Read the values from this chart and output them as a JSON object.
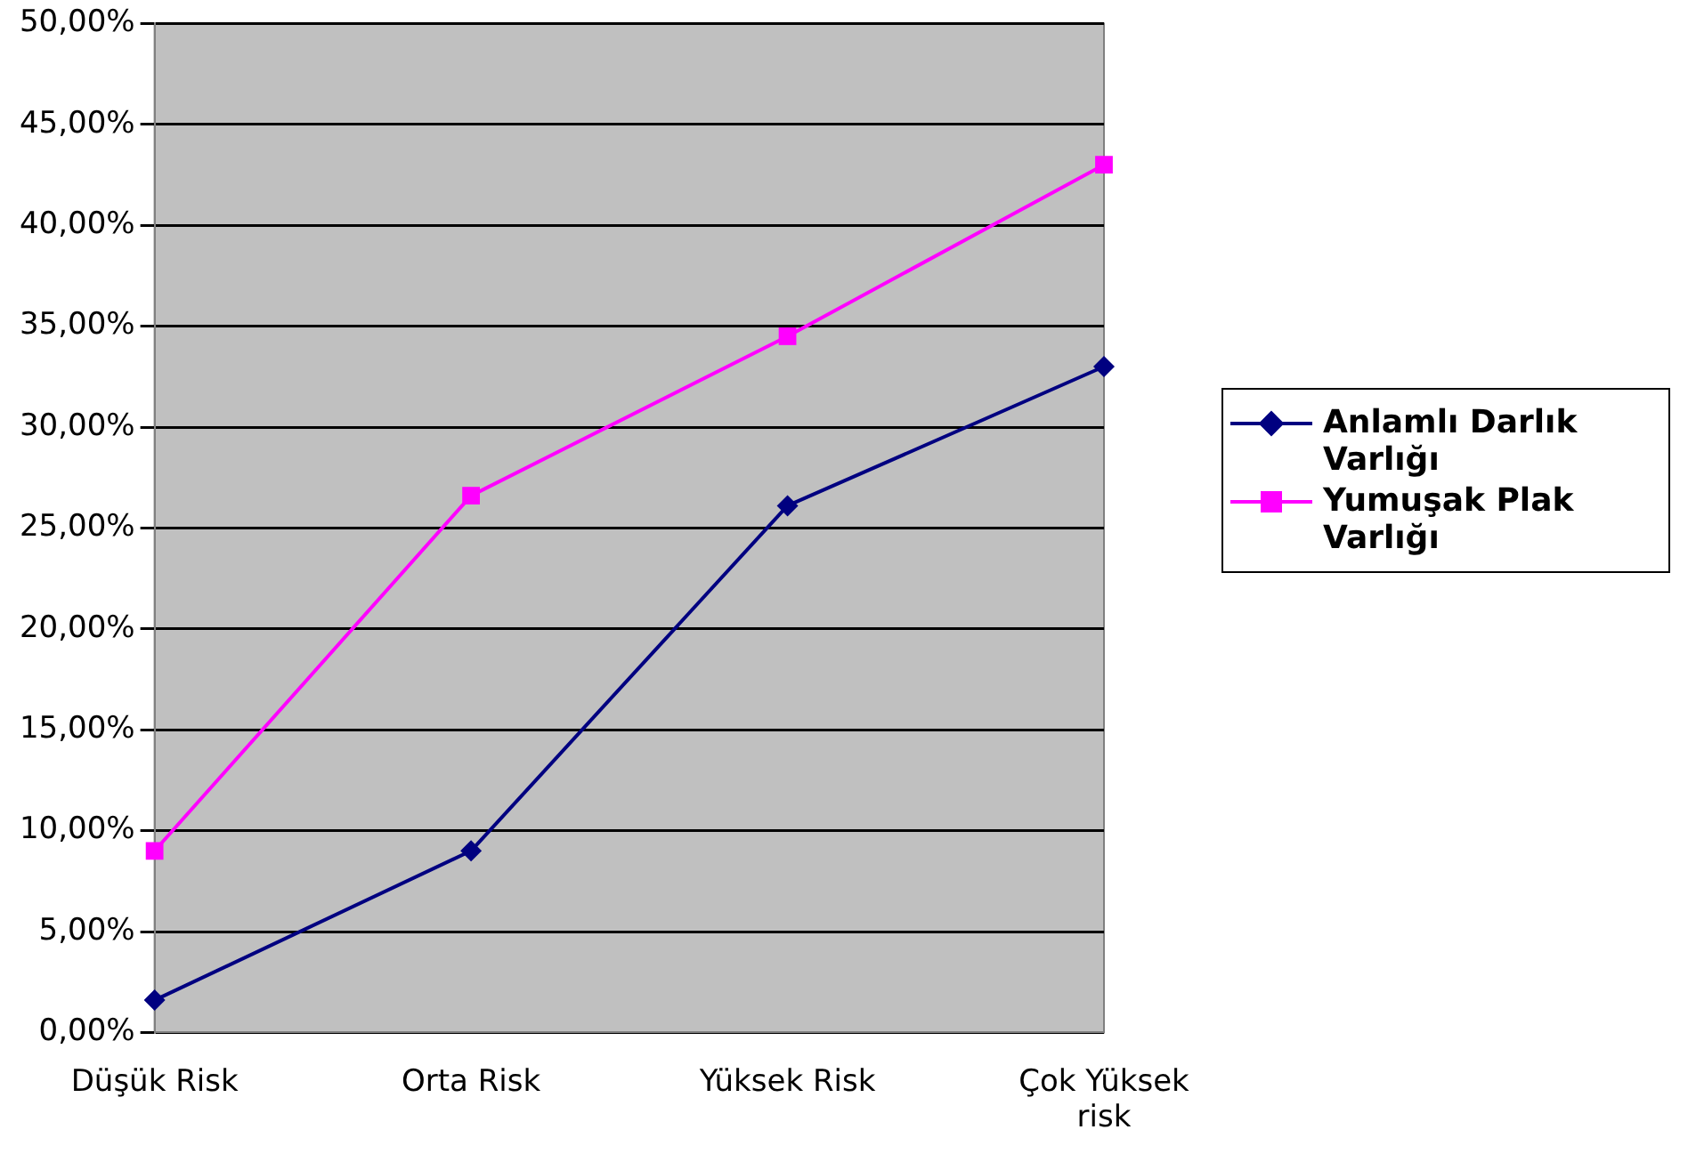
{
  "chart_data": {
    "type": "line",
    "categories": [
      "Düşük Risk",
      "Orta Risk",
      "Yüksek Risk",
      "Çok Yüksek risk"
    ],
    "series": [
      {
        "name": "Anlamlı Darlık Varlığı",
        "color": "#000080",
        "marker": "diamond",
        "values": [
          1.6,
          9.0,
          26.1,
          33.0
        ]
      },
      {
        "name": "Yumuşak Plak Varlığı",
        "color": "#ff00ff",
        "marker": "square",
        "values": [
          9.0,
          26.6,
          34.5,
          43.0
        ]
      }
    ],
    "ylim": [
      0,
      50
    ],
    "yticks": [
      {
        "value": 0,
        "label": "0,00%"
      },
      {
        "value": 5,
        "label": "5,00%"
      },
      {
        "value": 10,
        "label": "10,00%"
      },
      {
        "value": 15,
        "label": "15,00%"
      },
      {
        "value": 20,
        "label": "20,00%"
      },
      {
        "value": 25,
        "label": "25,00%"
      },
      {
        "value": 30,
        "label": "30,00%"
      },
      {
        "value": 35,
        "label": "35,00%"
      },
      {
        "value": 40,
        "label": "40,00%"
      },
      {
        "value": 45,
        "label": "45,00%"
      },
      {
        "value": 50,
        "label": "50,00%"
      }
    ],
    "grid": "y",
    "legend": "right"
  }
}
